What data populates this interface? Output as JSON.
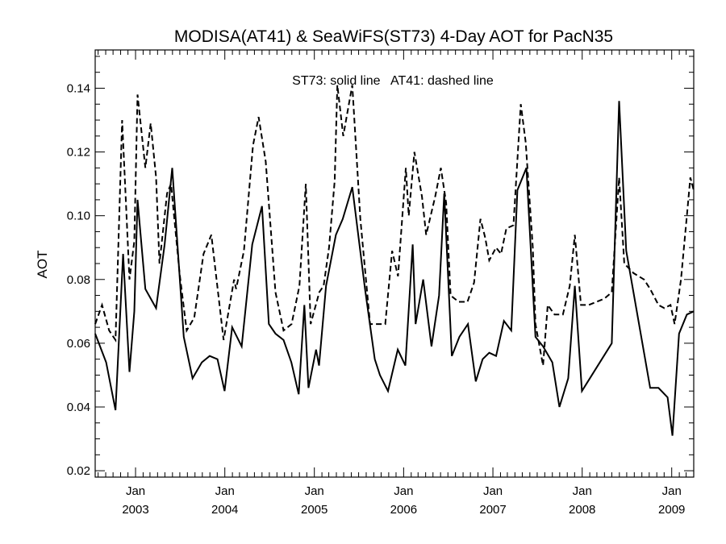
{
  "chart_data": {
    "type": "line",
    "title": "MODISA(AT41) & SeaWiFS(ST73) 4-Day AOT for PacN35",
    "annotation": "ST73: solid line   AT41: dashed line",
    "ylabel": "AOT",
    "xlabel": "",
    "xlim": [
      "2002-07-20",
      "2009-04-01"
    ],
    "ylim": [
      0.018,
      0.152
    ],
    "x_ticks": [
      {
        "date": "2003-01-01",
        "month": "Jan",
        "year": "2003"
      },
      {
        "date": "2004-01-01",
        "month": "Jan",
        "year": "2004"
      },
      {
        "date": "2005-01-01",
        "month": "Jan",
        "year": "2005"
      },
      {
        "date": "2006-01-01",
        "month": "Jan",
        "year": "2006"
      },
      {
        "date": "2007-01-01",
        "month": "Jan",
        "year": "2007"
      },
      {
        "date": "2008-01-01",
        "month": "Jan",
        "year": "2008"
      },
      {
        "date": "2009-01-01",
        "month": "Jan",
        "year": "2009"
      }
    ],
    "y_ticks": [
      "0.02",
      "0.04",
      "0.06",
      "0.08",
      "0.10",
      "0.12",
      "0.14"
    ],
    "grid": false,
    "series": [
      {
        "name": "ST73",
        "style": "solid",
        "color": "#000000",
        "points": [
          [
            "2002-07-20",
            0.063
          ],
          [
            "2002-09-03",
            0.054
          ],
          [
            "2002-10-11",
            0.039
          ],
          [
            "2002-11-11",
            0.088
          ],
          [
            "2002-12-07",
            0.051
          ],
          [
            "2002-12-27",
            0.07
          ],
          [
            "2003-01-09",
            0.105
          ],
          [
            "2003-02-10",
            0.077
          ],
          [
            "2003-03-26",
            0.071
          ],
          [
            "2003-04-30",
            0.091
          ],
          [
            "2003-05-31",
            0.115
          ],
          [
            "2003-07-17",
            0.062
          ],
          [
            "2003-08-22",
            0.049
          ],
          [
            "2003-09-29",
            0.054
          ],
          [
            "2003-10-31",
            0.056
          ],
          [
            "2003-12-02",
            0.055
          ],
          [
            "2003-12-31",
            0.045
          ],
          [
            "2004-01-31",
            0.065
          ],
          [
            "2004-03-10",
            0.059
          ],
          [
            "2004-04-22",
            0.091
          ],
          [
            "2004-06-01",
            0.103
          ],
          [
            "2004-06-29",
            0.066
          ],
          [
            "2004-07-26",
            0.063
          ],
          [
            "2004-08-28",
            0.061
          ],
          [
            "2004-09-29",
            0.054
          ],
          [
            "2004-10-29",
            0.044
          ],
          [
            "2004-11-21",
            0.072
          ],
          [
            "2004-12-08",
            0.046
          ],
          [
            "2005-01-08",
            0.058
          ],
          [
            "2005-01-20",
            0.053
          ],
          [
            "2005-02-18",
            0.078
          ],
          [
            "2005-03-30",
            0.094
          ],
          [
            "2005-04-27",
            0.099
          ],
          [
            "2005-06-05",
            0.109
          ],
          [
            "2005-07-27",
            0.077
          ],
          [
            "2005-09-05",
            0.055
          ],
          [
            "2005-09-26",
            0.05
          ],
          [
            "2005-10-29",
            0.045
          ],
          [
            "2005-12-08",
            0.058
          ],
          [
            "2006-01-08",
            0.053
          ],
          [
            "2006-02-07",
            0.091
          ],
          [
            "2006-02-19",
            0.066
          ],
          [
            "2006-03-22",
            0.08
          ],
          [
            "2006-04-25",
            0.059
          ],
          [
            "2006-05-26",
            0.075
          ],
          [
            "2006-06-16",
            0.107
          ],
          [
            "2006-07-17",
            0.056
          ],
          [
            "2006-08-17",
            0.062
          ],
          [
            "2006-09-21",
            0.066
          ],
          [
            "2006-10-23",
            0.048
          ],
          [
            "2006-11-20",
            0.055
          ],
          [
            "2006-12-17",
            0.057
          ],
          [
            "2007-01-14",
            0.056
          ],
          [
            "2007-02-15",
            0.067
          ],
          [
            "2007-03-17",
            0.064
          ],
          [
            "2007-04-11",
            0.108
          ],
          [
            "2007-05-18",
            0.115
          ],
          [
            "2007-06-24",
            0.062
          ],
          [
            "2007-07-25",
            0.059
          ],
          [
            "2007-09-01",
            0.054
          ],
          [
            "2007-09-30",
            0.04
          ],
          [
            "2007-11-05",
            0.049
          ],
          [
            "2007-12-02",
            0.078
          ],
          [
            "2007-12-31",
            0.045
          ],
          [
            "2008-05-01",
            0.06
          ],
          [
            "2008-05-31",
            0.136
          ],
          [
            "2008-06-29",
            0.089
          ],
          [
            "2008-09-10",
            0.057
          ],
          [
            "2008-10-05",
            0.046
          ],
          [
            "2008-11-08",
            0.046
          ],
          [
            "2008-12-15",
            0.043
          ],
          [
            "2009-01-04",
            0.031
          ],
          [
            "2009-01-31",
            0.063
          ],
          [
            "2009-03-04",
            0.069
          ],
          [
            "2009-04-01",
            0.07
          ]
        ]
      },
      {
        "name": "AT41",
        "style": "dashed",
        "color": "#000000",
        "points": [
          [
            "2002-07-20",
            0.066
          ],
          [
            "2002-08-17",
            0.072
          ],
          [
            "2002-09-15",
            0.064
          ],
          [
            "2002-10-11",
            0.061
          ],
          [
            "2002-11-07",
            0.13
          ],
          [
            "2002-12-07",
            0.08
          ],
          [
            "2002-12-27",
            0.092
          ],
          [
            "2003-01-09",
            0.138
          ],
          [
            "2003-02-10",
            0.115
          ],
          [
            "2003-03-04",
            0.129
          ],
          [
            "2003-03-26",
            0.112
          ],
          [
            "2003-04-09",
            0.085
          ],
          [
            "2003-05-10",
            0.107
          ],
          [
            "2003-05-26",
            0.11
          ],
          [
            "2003-06-30",
            0.082
          ],
          [
            "2003-07-29",
            0.064
          ],
          [
            "2003-08-29",
            0.068
          ],
          [
            "2003-10-06",
            0.088
          ],
          [
            "2003-11-07",
            0.094
          ],
          [
            "2003-12-27",
            0.061
          ],
          [
            "2004-02-08",
            0.08
          ],
          [
            "2004-02-16",
            0.077
          ],
          [
            "2004-03-19",
            0.089
          ],
          [
            "2004-04-25",
            0.122
          ],
          [
            "2004-05-18",
            0.131
          ],
          [
            "2004-06-16",
            0.117
          ],
          [
            "2004-07-26",
            0.076
          ],
          [
            "2004-08-28",
            0.064
          ],
          [
            "2004-09-30",
            0.066
          ],
          [
            "2004-11-01",
            0.078
          ],
          [
            "2004-11-27",
            0.11
          ],
          [
            "2004-12-17",
            0.066
          ],
          [
            "2005-01-21",
            0.076
          ],
          [
            "2005-02-08",
            0.078
          ],
          [
            "2005-03-02",
            0.09
          ],
          [
            "2005-03-25",
            0.111
          ],
          [
            "2005-04-05",
            0.141
          ],
          [
            "2005-04-29",
            0.125
          ],
          [
            "2005-06-05",
            0.141
          ],
          [
            "2005-07-08",
            0.099
          ],
          [
            "2005-08-17",
            0.066
          ],
          [
            "2005-09-19",
            0.066
          ],
          [
            "2005-10-18",
            0.066
          ],
          [
            "2005-11-15",
            0.089
          ],
          [
            "2005-12-09",
            0.081
          ],
          [
            "2006-01-10",
            0.115
          ],
          [
            "2006-01-22",
            0.1
          ],
          [
            "2006-02-14",
            0.12
          ],
          [
            "2006-03-17",
            0.106
          ],
          [
            "2006-04-03",
            0.094
          ],
          [
            "2006-05-10",
            0.106
          ],
          [
            "2006-06-02",
            0.115
          ],
          [
            "2006-06-24",
            0.104
          ],
          [
            "2006-07-12",
            0.075
          ],
          [
            "2006-08-14",
            0.073
          ],
          [
            "2006-09-19",
            0.073
          ],
          [
            "2006-10-16",
            0.079
          ],
          [
            "2006-11-11",
            0.099
          ],
          [
            "2006-12-01",
            0.093
          ],
          [
            "2006-12-17",
            0.086
          ],
          [
            "2007-01-14",
            0.09
          ],
          [
            "2007-02-03",
            0.088
          ],
          [
            "2007-02-25",
            0.096
          ],
          [
            "2007-03-26",
            0.097
          ],
          [
            "2007-04-25",
            0.135
          ],
          [
            "2007-05-15",
            0.123
          ],
          [
            "2007-06-13",
            0.09
          ],
          [
            "2007-06-24",
            0.066
          ],
          [
            "2007-07-25",
            0.053
          ],
          [
            "2007-08-13",
            0.072
          ],
          [
            "2007-09-10",
            0.069
          ],
          [
            "2007-10-14",
            0.069
          ],
          [
            "2007-11-11",
            0.078
          ],
          [
            "2007-12-02",
            0.094
          ],
          [
            "2007-12-27",
            0.072
          ],
          [
            "2008-01-28",
            0.072
          ],
          [
            "2008-02-29",
            0.073
          ],
          [
            "2008-04-01",
            0.074
          ],
          [
            "2008-05-01",
            0.076
          ],
          [
            "2008-05-31",
            0.112
          ],
          [
            "2008-06-21",
            0.085
          ],
          [
            "2008-07-29",
            0.082
          ],
          [
            "2008-09-10",
            0.08
          ],
          [
            "2008-10-05",
            0.077
          ],
          [
            "2008-11-08",
            0.072
          ],
          [
            "2008-12-02",
            0.071
          ],
          [
            "2008-12-27",
            0.072
          ],
          [
            "2009-01-13",
            0.066
          ],
          [
            "2009-02-08",
            0.08
          ],
          [
            "2009-03-04",
            0.1
          ],
          [
            "2009-03-18",
            0.112
          ],
          [
            "2009-04-01",
            0.108
          ]
        ]
      }
    ]
  }
}
